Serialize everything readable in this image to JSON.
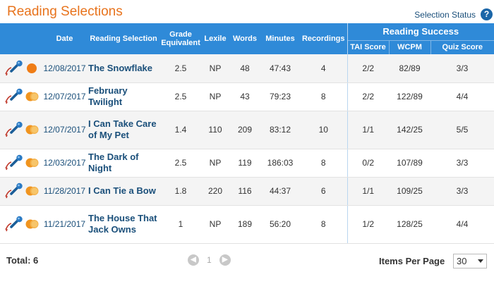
{
  "page": {
    "title": "Reading Selections",
    "selection_status": "Selection Status",
    "help": "?"
  },
  "table": {
    "headers": {
      "date": "Date",
      "selection": "Reading Selection",
      "grade": "Grade Equivalent",
      "lexile": "Lexile",
      "words": "Words",
      "minutes": "Minutes",
      "recordings": "Recordings",
      "success": "Reading Success",
      "tai": "TAI Score",
      "wcpm": "WCPM",
      "quiz": "Quiz Score"
    },
    "rows": [
      {
        "status_icon": "orange-dot-icon",
        "date": "12/08/2017",
        "selection": "The Snowflake",
        "grade": "2.5",
        "lexile": "NP",
        "words": "48",
        "minutes": "47:43",
        "recordings": "4",
        "tai": "2/2",
        "wcpm": "82/89",
        "quiz": "3/3"
      },
      {
        "status_icon": "orange-moon-icon",
        "date": "12/07/2017",
        "selection": "February Twilight",
        "grade": "2.5",
        "lexile": "NP",
        "words": "43",
        "minutes": "79:23",
        "recordings": "8",
        "tai": "2/2",
        "wcpm": "122/89",
        "quiz": "4/4"
      },
      {
        "status_icon": "orange-moon-icon",
        "date": "12/07/2017",
        "selection": "I Can Take Care of My Pet",
        "grade": "1.4",
        "lexile": "110",
        "words": "209",
        "minutes": "83:12",
        "recordings": "10",
        "tai": "1/1",
        "wcpm": "142/25",
        "quiz": "5/5"
      },
      {
        "status_icon": "orange-moon-icon",
        "date": "12/03/2017",
        "selection": "The Dark of Night",
        "grade": "2.5",
        "lexile": "NP",
        "words": "119",
        "minutes": "186:03",
        "recordings": "8",
        "tai": "0/2",
        "wcpm": "107/89",
        "quiz": "3/3"
      },
      {
        "status_icon": "orange-moon-icon",
        "date": "11/28/2017",
        "selection": "I Can Tie a Bow",
        "grade": "1.8",
        "lexile": "220",
        "words": "116",
        "minutes": "44:37",
        "recordings": "6",
        "tai": "1/1",
        "wcpm": "109/25",
        "quiz": "3/3"
      },
      {
        "status_icon": "orange-moon-icon",
        "date": "11/21/2017",
        "selection": "The House That Jack Owns",
        "grade": "1",
        "lexile": "NP",
        "words": "189",
        "minutes": "56:20",
        "recordings": "8",
        "tai": "1/2",
        "wcpm": "128/25",
        "quiz": "4/4"
      }
    ]
  },
  "footer": {
    "total": "Total: 6",
    "page_current": "1",
    "items_per_page_label": "Items Per Page",
    "items_per_page_value": "30"
  },
  "colors": {
    "accent_orange": "#e8731c",
    "header_blue": "#2f8ad8",
    "link_navy": "#1a4f7a"
  }
}
